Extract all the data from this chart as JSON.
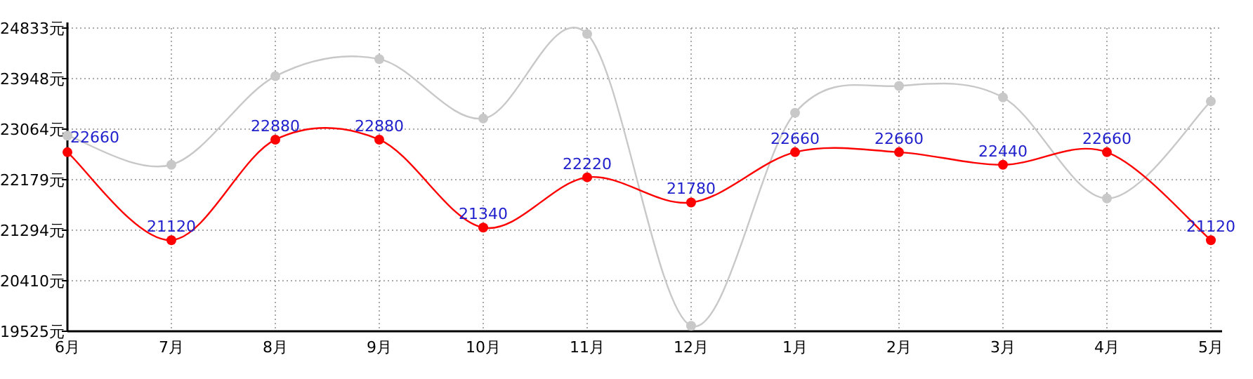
{
  "chart_data": {
    "type": "line",
    "categories": [
      "6月",
      "7月",
      "8月",
      "9月",
      "10月",
      "11月",
      "12月",
      "1月",
      "2月",
      "3月",
      "4月",
      "5月"
    ],
    "series": [
      {
        "color": "#c8c8c8",
        "values": [
          22950,
          22440,
          23990,
          24290,
          23250,
          24730,
          19620,
          23350,
          23820,
          23620,
          21850,
          23550
        ]
      },
      {
        "color": "#ff0000",
        "values": [
          22660,
          21120,
          22880,
          22880,
          21340,
          22220,
          21780,
          22660,
          22660,
          22440,
          22660,
          21120
        ],
        "value_labels": [
          "22660",
          "21120",
          "22880",
          "22880",
          "21340",
          "22220",
          "21780",
          "22660",
          "22660",
          "22440",
          "22660",
          "21120"
        ]
      }
    ],
    "ylim": [
      19525,
      24833
    ],
    "yticks": [
      {
        "value": 19525,
        "label": "19525元"
      },
      {
        "value": 20410,
        "label": "20410元"
      },
      {
        "value": 21294,
        "label": "21294元"
      },
      {
        "value": 22179,
        "label": "22179元"
      },
      {
        "value": 23064,
        "label": "23064元"
      },
      {
        "value": 23948,
        "label": "23948元"
      },
      {
        "value": 24833,
        "label": "24833元"
      }
    ],
    "grid": true,
    "marker": "circle",
    "line_style": "solid"
  }
}
